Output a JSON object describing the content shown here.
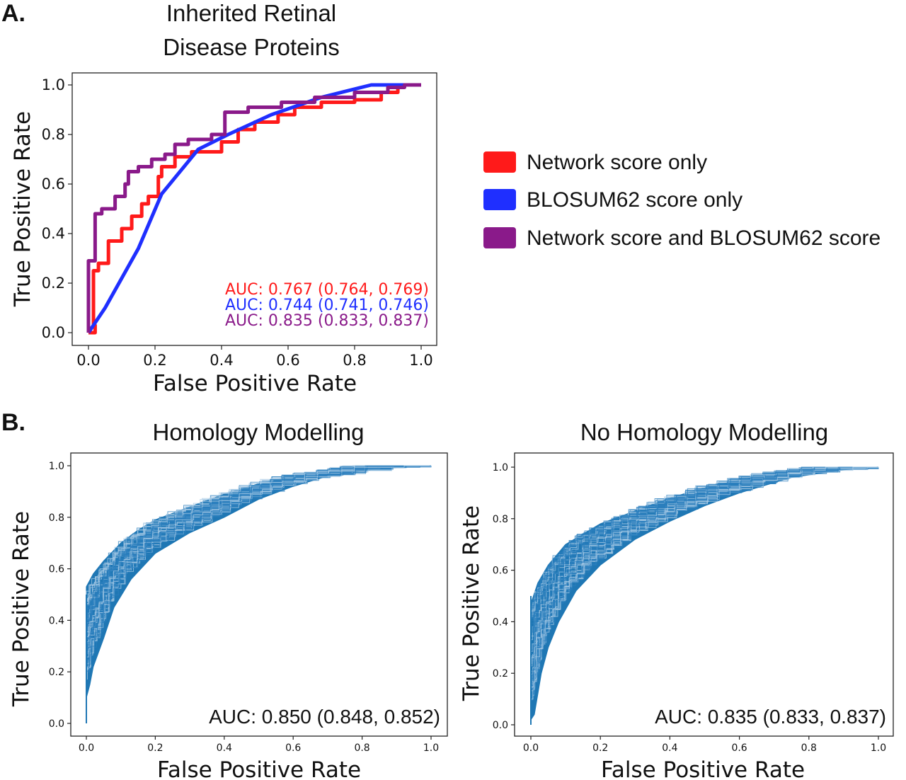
{
  "panels": {
    "a_letter": "A.",
    "b_letter": "B."
  },
  "chart_data": [
    {
      "id": "A",
      "type": "line",
      "title": "Inherited Retinal\nDisease Proteins",
      "xlabel": "False Positive Rate",
      "ylabel": "True Positive Rate",
      "xlim": [
        0,
        1
      ],
      "ylim": [
        0,
        1
      ],
      "xticks": [
        "0.0",
        "0.2",
        "0.4",
        "0.6",
        "0.8",
        "1.0"
      ],
      "yticks": [
        "0.0",
        "0.2",
        "0.4",
        "0.6",
        "0.8",
        "1.0"
      ],
      "grid": false,
      "legend_position": "right",
      "series": [
        {
          "name": "Network score only",
          "color": "#ff1a1a",
          "auc_label": "AUC: 0.767 (0.764, 0.769)",
          "step": true,
          "points": [
            [
              0,
              0
            ],
            [
              0.02,
              0
            ],
            [
              0.02,
              0.03
            ],
            [
              0.015,
              0.03
            ],
            [
              0.015,
              0.25
            ],
            [
              0.03,
              0.25
            ],
            [
              0.03,
              0.28
            ],
            [
              0.06,
              0.28
            ],
            [
              0.06,
              0.37
            ],
            [
              0.1,
              0.37
            ],
            [
              0.1,
              0.42
            ],
            [
              0.13,
              0.42
            ],
            [
              0.13,
              0.47
            ],
            [
              0.16,
              0.47
            ],
            [
              0.16,
              0.52
            ],
            [
              0.18,
              0.52
            ],
            [
              0.18,
              0.55
            ],
            [
              0.21,
              0.55
            ],
            [
              0.21,
              0.63
            ],
            [
              0.22,
              0.63
            ],
            [
              0.22,
              0.67
            ],
            [
              0.26,
              0.67
            ],
            [
              0.26,
              0.71
            ],
            [
              0.31,
              0.71
            ],
            [
              0.31,
              0.73
            ],
            [
              0.4,
              0.73
            ],
            [
              0.4,
              0.77
            ],
            [
              0.45,
              0.77
            ],
            [
              0.45,
              0.82
            ],
            [
              0.5,
              0.82
            ],
            [
              0.5,
              0.85
            ],
            [
              0.57,
              0.85
            ],
            [
              0.57,
              0.88
            ],
            [
              0.62,
              0.88
            ],
            [
              0.62,
              0.91
            ],
            [
              0.7,
              0.91
            ],
            [
              0.7,
              0.93
            ],
            [
              0.8,
              0.93
            ],
            [
              0.8,
              0.94
            ],
            [
              0.88,
              0.94
            ],
            [
              0.88,
              0.97
            ],
            [
              0.93,
              0.97
            ],
            [
              0.93,
              1.0
            ],
            [
              1.0,
              1.0
            ]
          ]
        },
        {
          "name": "BLOSUM62 score only",
          "color": "#1f2fff",
          "auc_label": "AUC: 0.744 (0.741, 0.746)",
          "step": false,
          "points": [
            [
              0,
              0
            ],
            [
              0.05,
              0.1
            ],
            [
              0.1,
              0.22
            ],
            [
              0.15,
              0.34
            ],
            [
              0.22,
              0.56
            ],
            [
              0.33,
              0.74
            ],
            [
              0.42,
              0.8
            ],
            [
              0.55,
              0.88
            ],
            [
              0.7,
              0.95
            ],
            [
              0.85,
              1.0
            ],
            [
              1.0,
              1.0
            ]
          ]
        },
        {
          "name": "Network score and BLOSUM62 score",
          "color": "#8a1a8a",
          "auc_label": "AUC: 0.835 (0.833, 0.837)",
          "step": true,
          "points": [
            [
              0,
              0
            ],
            [
              0,
              0.29
            ],
            [
              0.02,
              0.29
            ],
            [
              0.02,
              0.48
            ],
            [
              0.04,
              0.48
            ],
            [
              0.04,
              0.5
            ],
            [
              0.08,
              0.5
            ],
            [
              0.08,
              0.55
            ],
            [
              0.11,
              0.55
            ],
            [
              0.11,
              0.6
            ],
            [
              0.12,
              0.6
            ],
            [
              0.12,
              0.65
            ],
            [
              0.15,
              0.65
            ],
            [
              0.15,
              0.67
            ],
            [
              0.19,
              0.67
            ],
            [
              0.19,
              0.7
            ],
            [
              0.23,
              0.7
            ],
            [
              0.23,
              0.72
            ],
            [
              0.26,
              0.72
            ],
            [
              0.26,
              0.76
            ],
            [
              0.3,
              0.76
            ],
            [
              0.3,
              0.78
            ],
            [
              0.37,
              0.78
            ],
            [
              0.37,
              0.8
            ],
            [
              0.41,
              0.8
            ],
            [
              0.41,
              0.89
            ],
            [
              0.48,
              0.89
            ],
            [
              0.48,
              0.91
            ],
            [
              0.58,
              0.91
            ],
            [
              0.58,
              0.93
            ],
            [
              0.68,
              0.93
            ],
            [
              0.68,
              0.95
            ],
            [
              0.8,
              0.95
            ],
            [
              0.8,
              0.97
            ],
            [
              0.9,
              0.97
            ],
            [
              0.9,
              0.99
            ],
            [
              0.95,
              0.99
            ],
            [
              0.95,
              1.0
            ],
            [
              1.0,
              1.0
            ]
          ]
        }
      ]
    },
    {
      "id": "B1",
      "type": "line",
      "title": "Homology Modelling",
      "xlabel": "False Positive Rate",
      "ylabel": "True Positive Rate",
      "xlim": [
        0,
        1
      ],
      "ylim": [
        0,
        1
      ],
      "xticks": [
        "0.0",
        "0.2",
        "0.4",
        "0.6",
        "0.8",
        "1.0"
      ],
      "yticks": [
        "0.0",
        "0.2",
        "0.4",
        "0.6",
        "0.8",
        "1.0"
      ],
      "grid": false,
      "color": "#1f77b4",
      "auc_label": "AUC: 0.850 (0.848, 0.852)",
      "band": {
        "upper": [
          [
            0,
            0.53
          ],
          [
            0.02,
            0.58
          ],
          [
            0.05,
            0.63
          ],
          [
            0.1,
            0.7
          ],
          [
            0.15,
            0.75
          ],
          [
            0.2,
            0.79
          ],
          [
            0.3,
            0.84
          ],
          [
            0.4,
            0.89
          ],
          [
            0.5,
            0.93
          ],
          [
            0.6,
            0.96
          ],
          [
            0.8,
            0.99
          ],
          [
            1.0,
            1.0
          ]
        ],
        "lower": [
          [
            0.0,
            0.1
          ],
          [
            0.01,
            0.15
          ],
          [
            0.02,
            0.22
          ],
          [
            0.05,
            0.33
          ],
          [
            0.08,
            0.45
          ],
          [
            0.13,
            0.56
          ],
          [
            0.2,
            0.66
          ],
          [
            0.3,
            0.74
          ],
          [
            0.4,
            0.8
          ],
          [
            0.5,
            0.87
          ],
          [
            0.6,
            0.92
          ],
          [
            0.7,
            0.96
          ],
          [
            0.85,
            0.99
          ],
          [
            1.0,
            1.0
          ]
        ]
      }
    },
    {
      "id": "B2",
      "type": "line",
      "title": "No Homology Modelling",
      "xlabel": "False Positive Rate",
      "ylabel": "True Positive Rate",
      "xlim": [
        0,
        1
      ],
      "ylim": [
        0,
        1
      ],
      "xticks": [
        "0.0",
        "0.2",
        "0.4",
        "0.6",
        "0.8",
        "1.0"
      ],
      "yticks": [
        "0.0",
        "0.2",
        "0.4",
        "0.6",
        "0.8",
        "1.0"
      ],
      "grid": false,
      "color": "#1f77b4",
      "auc_label": "AUC: 0.835 (0.833, 0.837)",
      "band": {
        "upper": [
          [
            0,
            0.47
          ],
          [
            0.02,
            0.55
          ],
          [
            0.05,
            0.62
          ],
          [
            0.1,
            0.7
          ],
          [
            0.15,
            0.74
          ],
          [
            0.2,
            0.78
          ],
          [
            0.3,
            0.83
          ],
          [
            0.4,
            0.88
          ],
          [
            0.5,
            0.92
          ],
          [
            0.6,
            0.95
          ],
          [
            0.8,
            0.99
          ],
          [
            1.0,
            1.0
          ]
        ],
        "lower": [
          [
            0.0,
            0.02
          ],
          [
            0.01,
            0.04
          ],
          [
            0.02,
            0.12
          ],
          [
            0.03,
            0.2
          ],
          [
            0.05,
            0.3
          ],
          [
            0.08,
            0.4
          ],
          [
            0.13,
            0.52
          ],
          [
            0.2,
            0.62
          ],
          [
            0.3,
            0.72
          ],
          [
            0.4,
            0.79
          ],
          [
            0.5,
            0.85
          ],
          [
            0.6,
            0.9
          ],
          [
            0.75,
            0.96
          ],
          [
            0.9,
            0.99
          ],
          [
            1.0,
            1.0
          ]
        ]
      }
    }
  ]
}
